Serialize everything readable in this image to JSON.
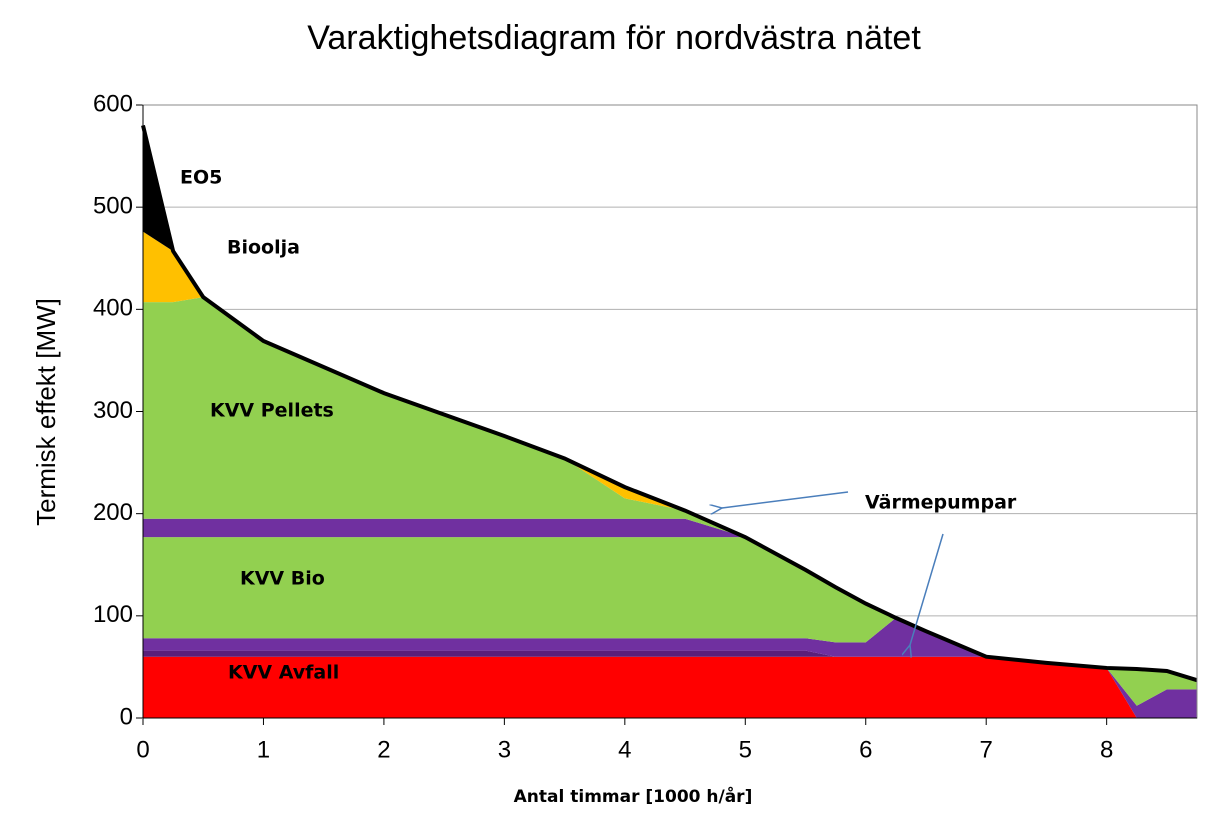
{
  "chart_data": {
    "type": "stacked_area",
    "title": "Varaktighetsdiagram för nordvästra nätet",
    "x_label": "Antal timmar [1000 h/år]",
    "y_label": "Termisk effekt  [MW]",
    "x": [
      0,
      0.25,
      0.5,
      1,
      2,
      3,
      3.5,
      4,
      4.5,
      5,
      5.5,
      5.75,
      6,
      6.25,
      6.5,
      7,
      7.5,
      8,
      8.25,
      8.5,
      8.75
    ],
    "series": [
      {
        "name": "KVV Avfall",
        "color": "#ff0000",
        "values": [
          60,
          60,
          60,
          60,
          60,
          60,
          60,
          60,
          60,
          60,
          60,
          60,
          60,
          60,
          60,
          60,
          54,
          49,
          0,
          0,
          0
        ]
      },
      {
        "color": "#5b1f7a",
        "values": [
          6,
          6,
          6,
          6,
          6,
          6,
          6,
          6,
          6,
          6,
          6,
          0,
          0,
          0,
          0,
          0,
          0,
          0,
          0,
          0,
          0
        ]
      },
      {
        "color": "#7030a0",
        "values": [
          12,
          12,
          12,
          12,
          12,
          12,
          12,
          12,
          12,
          12,
          12,
          14,
          14,
          38,
          25,
          0,
          0,
          0,
          12,
          28,
          28
        ]
      },
      {
        "name": "KVV Bio",
        "color": "#92d050",
        "values": [
          99,
          99,
          99,
          99,
          99,
          99,
          99,
          99,
          99,
          99,
          67,
          54,
          38,
          0,
          0,
          0,
          0,
          0,
          36,
          18,
          9
        ]
      },
      {
        "name": "Värmepumpar",
        "color": "#7030a0",
        "values": [
          18,
          18,
          18,
          18,
          18,
          18,
          18,
          18,
          18,
          0,
          0,
          0,
          0,
          0,
          0,
          0,
          0,
          0,
          0,
          0,
          0
        ]
      },
      {
        "name": "KVV Pellets",
        "color": "#92d050",
        "values": [
          212,
          212,
          217,
          174,
          123,
          81,
          59,
          20,
          8,
          0,
          0,
          0,
          0,
          0,
          0,
          0,
          0,
          0,
          0,
          0,
          0
        ]
      },
      {
        "name": "Bioolja",
        "color": "#ffc000",
        "values": [
          69,
          50,
          0,
          0,
          0,
          0,
          0,
          11,
          0,
          0,
          0,
          0,
          0,
          0,
          0,
          0,
          0,
          0,
          0,
          0,
          0
        ]
      },
      {
        "name": "EO5",
        "color": "#000000",
        "values": [
          104,
          0,
          0,
          0,
          0,
          0,
          0,
          0,
          0,
          0,
          0,
          0,
          0,
          0,
          0,
          0,
          0,
          0,
          0,
          0,
          0
        ]
      }
    ],
    "xlim": [
      0,
      8.75
    ],
    "ylim": [
      0,
      600
    ],
    "xticks": [
      0,
      1,
      2,
      3,
      4,
      5,
      6,
      7,
      8
    ],
    "yticks": [
      0,
      100,
      200,
      300,
      400,
      500,
      600
    ],
    "grid": true
  }
}
